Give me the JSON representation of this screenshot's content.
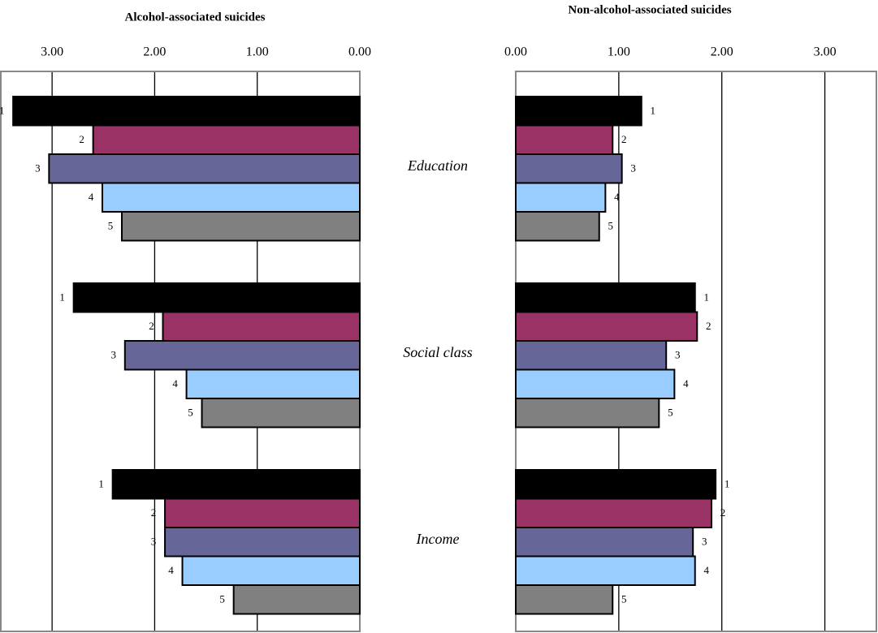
{
  "chart_data": [
    {
      "type": "barh",
      "title": "Alcohol-associated suicides",
      "categories": [
        "Education",
        "Social class",
        "Income"
      ],
      "series": [
        {
          "name": "1",
          "color": "#000000",
          "values": [
            3.38,
            2.79,
            2.41
          ]
        },
        {
          "name": "2",
          "color": "#993366",
          "values": [
            2.6,
            1.92,
            1.9
          ]
        },
        {
          "name": "3",
          "color": "#666699",
          "values": [
            3.03,
            2.29,
            1.9
          ]
        },
        {
          "name": "4",
          "color": "#99ccff",
          "values": [
            2.51,
            1.69,
            1.73
          ]
        },
        {
          "name": "5",
          "color": "#808080",
          "values": [
            2.32,
            1.54,
            1.23
          ]
        }
      ],
      "xlim": [
        0,
        3.5
      ],
      "x_reversed": true,
      "xticks": [
        {
          "value": 0,
          "label": "0.00"
        },
        {
          "value": 1,
          "label": "1.00"
        },
        {
          "value": 2,
          "label": "2.00"
        },
        {
          "value": 3,
          "label": "3.00"
        }
      ],
      "grid": true
    },
    {
      "type": "barh",
      "title": "Non-alcohol-associated suicides",
      "series": [
        {
          "name": "1",
          "color": "#000000",
          "values": [
            1.22,
            1.74,
            1.94
          ]
        },
        {
          "name": "2",
          "color": "#993366",
          "values": [
            0.94,
            1.76,
            1.9
          ]
        },
        {
          "name": "3",
          "color": "#666699",
          "values": [
            1.03,
            1.46,
            1.72
          ]
        },
        {
          "name": "4",
          "color": "#99ccff",
          "values": [
            0.87,
            1.54,
            1.74
          ]
        },
        {
          "name": "5",
          "color": "#808080",
          "values": [
            0.81,
            1.39,
            0.94
          ]
        }
      ],
      "xlim": [
        0,
        3.5
      ],
      "x_reversed": false,
      "xticks": [
        {
          "value": 0,
          "label": "0.00"
        },
        {
          "value": 1,
          "label": "1.00"
        },
        {
          "value": 2,
          "label": "2.00"
        },
        {
          "value": 3,
          "label": "3.00"
        }
      ],
      "grid": true
    }
  ]
}
